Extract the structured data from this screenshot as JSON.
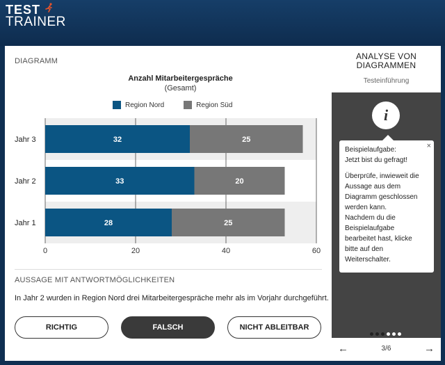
{
  "logo": {
    "line1": "TEST",
    "line2": "TRAINER"
  },
  "main": {
    "diagram_section": "DIAGRAMM",
    "statement_section": "AUSSAGE MIT ANTWORTMÖGLICHKEITEN",
    "statement": "In Jahr 2 wurden in Region Nord drei Mitarbeitergespräche mehr als im Vorjahr durchgeführt.",
    "answers": [
      "RICHTIG",
      "FALSCH",
      "NICHT ABLEITBAR"
    ]
  },
  "chart_data": {
    "type": "bar",
    "orientation": "horizontal",
    "stacked": true,
    "title": "Anzahl Mitarbeitergespräche",
    "subtitle": "(Gesamt)",
    "categories": [
      "Jahr 3",
      "Jahr 2",
      "Jahr 1"
    ],
    "series": [
      {
        "name": "Region Nord",
        "color": "#0b5583",
        "values": [
          32,
          33,
          28
        ]
      },
      {
        "name": "Region Süd",
        "color": "#777777",
        "values": [
          25,
          20,
          25
        ]
      }
    ],
    "xlim": [
      0,
      60
    ],
    "xticks": [
      0,
      20,
      40,
      60
    ],
    "grid": true,
    "legend_position": "top"
  },
  "side": {
    "title_line1": "ANALYSE VON",
    "title_line2": "DIAGRAMMEN",
    "subtitle": "Testeinführung",
    "info_icon": "i",
    "popup": {
      "close": "×",
      "lines": [
        "Beispielaufgabe:",
        "Jetzt bist du gefragt!",
        "",
        "Überprüfe, inwieweit die",
        "Aussage aus dem",
        "Diagramm geschlossen",
        "werden kann.",
        "Nachdem du die",
        "Beispielaufgabe",
        "bearbeitet hast, klicke",
        "bitte auf den",
        "Weiterschalter."
      ]
    },
    "dots_total": 6,
    "dots_active": 3,
    "pager": "3/6",
    "prev_icon": "←",
    "next_icon": "→"
  }
}
